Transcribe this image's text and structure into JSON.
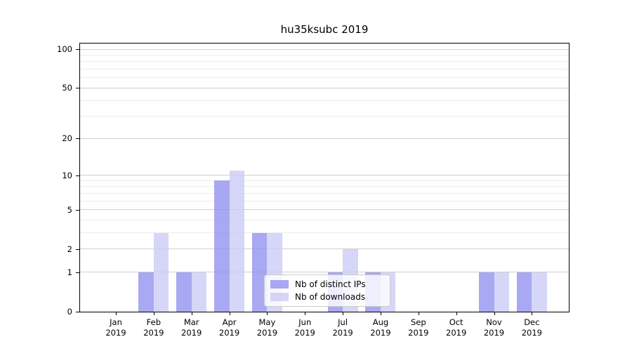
{
  "chart_data": {
    "type": "bar",
    "title": "hu35ksubc 2019",
    "y_scale": "log(1+x)",
    "categories": [
      "Jan",
      "Feb",
      "Mar",
      "Apr",
      "May",
      "Jun",
      "Jul",
      "Aug",
      "Sep",
      "Oct",
      "Nov",
      "Dec"
    ],
    "category_year": "2019",
    "series": [
      {
        "name": "Nb of distinct IPs",
        "color": "rgba(143,143,240,0.78)",
        "values": [
          0,
          1,
          1,
          9,
          3,
          0,
          1,
          1,
          0,
          0,
          1,
          1
        ]
      },
      {
        "name": "Nb of downloads",
        "color": "rgba(203,203,246,0.78)",
        "values": [
          0,
          3,
          1,
          11,
          3,
          0,
          2,
          1,
          0,
          0,
          1,
          1
        ]
      }
    ],
    "xlabel": "",
    "ylabel": "",
    "ylim": [
      0,
      110.5
    ],
    "yticks": [
      0,
      1,
      2,
      5,
      10,
      20,
      50,
      100
    ],
    "yticks_minor": [
      3,
      4,
      6,
      7,
      8,
      9,
      30,
      40,
      60,
      70,
      80,
      90
    ],
    "grid": true,
    "legend_position": "lower center"
  },
  "colors": {
    "background": "#ffffff",
    "spine": "#000000",
    "grid_major": "#cfcfcf",
    "grid_minor": "#ececec",
    "series_ips": "rgba(143,143,240,0.78)",
    "series_downloads": "rgba(203,203,246,0.78)"
  }
}
